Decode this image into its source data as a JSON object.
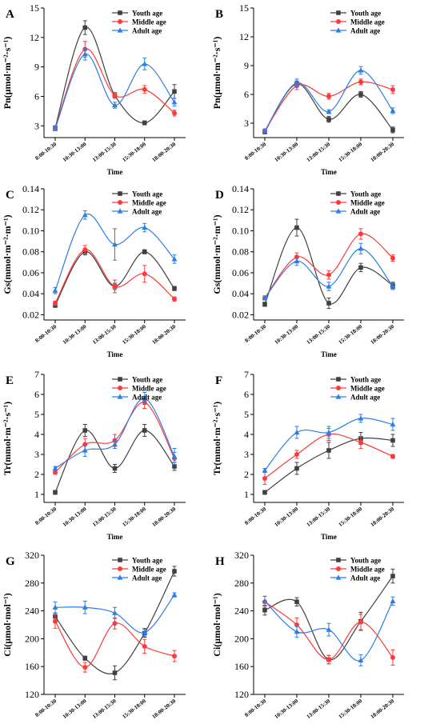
{
  "x_categories": [
    "8:00-10:30",
    "10:30-13:00",
    "13:00-15:30",
    "15:30-18:00",
    "18:00-20:30"
  ],
  "legend_labels": [
    "Youth age",
    "Middle age",
    "Adult age"
  ],
  "colors": {
    "youth": "#404040",
    "middle": "#ff3a3a",
    "adult": "#2b7de9"
  },
  "chart_data": [
    {
      "panel": "A",
      "type": "line",
      "xlabel": "Time",
      "ylabel": "Pn(μmol·m⁻²·s⁻¹)",
      "ylim": [
        1.8,
        15
      ],
      "yticks": [
        3,
        6,
        9,
        12,
        15
      ],
      "legend": "top-right",
      "series": [
        {
          "name": "Youth age",
          "values": [
            2.8,
            13.0,
            6.1,
            3.3,
            6.5
          ],
          "errors": [
            0.2,
            0.7,
            0.3,
            0.2,
            0.7
          ]
        },
        {
          "name": "Middle age",
          "values": [
            2.8,
            10.8,
            6.1,
            6.7,
            4.3
          ],
          "errors": [
            0.2,
            0.8,
            0.3,
            0.4,
            0.3
          ]
        },
        {
          "name": "Adult age",
          "values": [
            2.7,
            10.3,
            5.1,
            9.3,
            5.4
          ],
          "errors": [
            0.2,
            0.6,
            0.3,
            0.6,
            0.4
          ]
        }
      ]
    },
    {
      "panel": "B",
      "type": "line",
      "xlabel": "Time",
      "ylabel": "Pn(μmol·m⁻²·s⁻¹)",
      "ylim": [
        1.5,
        15
      ],
      "yticks": [
        3,
        6,
        9,
        12,
        15
      ],
      "legend": "top-right",
      "series": [
        {
          "name": "Youth age",
          "values": [
            2.1,
            7.1,
            3.4,
            6.0,
            2.3
          ],
          "errors": [
            0.2,
            0.3,
            0.3,
            0.3,
            0.3
          ]
        },
        {
          "name": "Middle age",
          "values": [
            2.2,
            6.9,
            5.8,
            7.3,
            6.5
          ],
          "errors": [
            0.2,
            0.4,
            0.3,
            0.3,
            0.4
          ]
        },
        {
          "name": "Adult age",
          "values": [
            2.2,
            7.2,
            4.2,
            8.5,
            4.3
          ],
          "errors": [
            0.2,
            0.4,
            0.2,
            0.4,
            0.3
          ]
        }
      ]
    },
    {
      "panel": "C",
      "type": "line",
      "xlabel": "Time",
      "ylabel": "Gs(mmol·m⁻²·m⁻¹)",
      "ylim": [
        0.015,
        0.14
      ],
      "yticks": [
        0.02,
        0.04,
        0.06,
        0.08,
        0.1,
        0.12,
        0.14
      ],
      "legend": "top-right",
      "series": [
        {
          "name": "Youth age",
          "values": [
            0.029,
            0.08,
            0.047,
            0.08,
            0.045
          ],
          "errors": [
            0.002,
            0.003,
            0.003,
            0.002,
            0.002
          ]
        },
        {
          "name": "Middle age",
          "values": [
            0.031,
            0.082,
            0.047,
            0.059,
            0.035
          ],
          "errors": [
            0.002,
            0.004,
            0.006,
            0.008,
            0.002
          ]
        },
        {
          "name": "Adult age",
          "values": [
            0.043,
            0.115,
            0.087,
            0.103,
            0.073
          ],
          "errors": [
            0.003,
            0.004,
            0.015,
            0.004,
            0.004
          ]
        }
      ]
    },
    {
      "panel": "D",
      "type": "line",
      "xlabel": "Time",
      "ylabel": "Gs(mmol·m⁻²·m⁻¹)",
      "ylim": [
        0.015,
        0.14
      ],
      "yticks": [
        0.02,
        0.04,
        0.06,
        0.08,
        0.1,
        0.12,
        0.14
      ],
      "legend": "top-right",
      "series": [
        {
          "name": "Youth age",
          "values": [
            0.03,
            0.103,
            0.031,
            0.065,
            0.048
          ],
          "errors": [
            0.002,
            0.008,
            0.005,
            0.004,
            0.003
          ]
        },
        {
          "name": "Middle age",
          "values": [
            0.036,
            0.075,
            0.058,
            0.097,
            0.074
          ],
          "errors": [
            0.002,
            0.004,
            0.004,
            0.005,
            0.003
          ]
        },
        {
          "name": "Adult age",
          "values": [
            0.036,
            0.071,
            0.047,
            0.083,
            0.047
          ],
          "errors": [
            0.002,
            0.004,
            0.004,
            0.005,
            0.003
          ]
        }
      ]
    },
    {
      "panel": "E",
      "type": "line",
      "xlabel": "Time",
      "ylabel": "Tr(mmol·m⁻²·s⁻¹)",
      "ylim": [
        0.6,
        7
      ],
      "yticks": [
        1,
        2,
        3,
        4,
        5,
        6,
        7
      ],
      "legend": "top-right",
      "series": [
        {
          "name": "Youth age",
          "values": [
            1.1,
            4.2,
            2.3,
            4.2,
            2.4
          ],
          "errors": [
            0.1,
            0.3,
            0.2,
            0.3,
            0.2
          ]
        },
        {
          "name": "Middle age",
          "values": [
            2.1,
            3.5,
            3.7,
            5.6,
            2.8
          ],
          "errors": [
            0.1,
            0.3,
            0.3,
            0.3,
            0.3
          ]
        },
        {
          "name": "Adult age",
          "values": [
            2.3,
            3.2,
            3.5,
            5.8,
            2.9
          ],
          "errors": [
            0.1,
            0.3,
            0.2,
            0.3,
            0.4
          ]
        }
      ]
    },
    {
      "panel": "F",
      "type": "line",
      "xlabel": "Time",
      "ylabel": "Tr(mmol·m⁻²·s⁻¹)",
      "ylim": [
        0.6,
        7
      ],
      "yticks": [
        1,
        2,
        3,
        4,
        5,
        6,
        7
      ],
      "legend": "top-right",
      "series": [
        {
          "name": "Youth age",
          "values": [
            1.1,
            2.3,
            3.2,
            3.8,
            3.7
          ],
          "errors": [
            0.1,
            0.3,
            0.4,
            0.3,
            0.3
          ]
        },
        {
          "name": "Middle age",
          "values": [
            1.8,
            3.0,
            4.0,
            3.6,
            2.9
          ],
          "errors": [
            0.3,
            0.2,
            0.3,
            0.3,
            0.1
          ]
        },
        {
          "name": "Adult age",
          "values": [
            2.2,
            4.1,
            4.1,
            4.8,
            4.5
          ],
          "errors": [
            0.1,
            0.3,
            0.3,
            0.2,
            0.3
          ]
        }
      ]
    },
    {
      "panel": "G",
      "type": "line",
      "xlabel": "Time",
      "ylabel": "Ci(μmol·mol⁻¹)",
      "ylim": [
        120,
        320
      ],
      "yticks": [
        120,
        160,
        200,
        240,
        280,
        320
      ],
      "legend": "top-right",
      "series": [
        {
          "name": "Youth age",
          "values": [
            232,
            172,
            151,
            208,
            297
          ],
          "errors": [
            5,
            3,
            10,
            6,
            7
          ]
        },
        {
          "name": "Middle age",
          "values": [
            225,
            159,
            222,
            189,
            175
          ],
          "errors": [
            10,
            7,
            8,
            10,
            8
          ]
        },
        {
          "name": "Adult age",
          "values": [
            245,
            245,
            237,
            209,
            263
          ],
          "errors": [
            8,
            9,
            8,
            6,
            3
          ]
        }
      ]
    },
    {
      "panel": "H",
      "type": "line",
      "xlabel": "Time",
      "ylabel": "Ci(μmol·mol⁻¹)",
      "ylim": [
        120,
        320
      ],
      "yticks": [
        120,
        160,
        200,
        240,
        280,
        320
      ],
      "legend": "top-right",
      "series": [
        {
          "name": "Youth age",
          "values": [
            241,
            253,
            170,
            225,
            290
          ],
          "errors": [
            7,
            6,
            6,
            13,
            10
          ]
        },
        {
          "name": "Middle age",
          "values": [
            253,
            220,
            170,
            224,
            173
          ],
          "errors": [
            8,
            10,
            6,
            11,
            11
          ]
        },
        {
          "name": "Adult age",
          "values": [
            254,
            210,
            213,
            169,
            254
          ],
          "errors": [
            7,
            8,
            9,
            8,
            6
          ]
        }
      ]
    }
  ]
}
